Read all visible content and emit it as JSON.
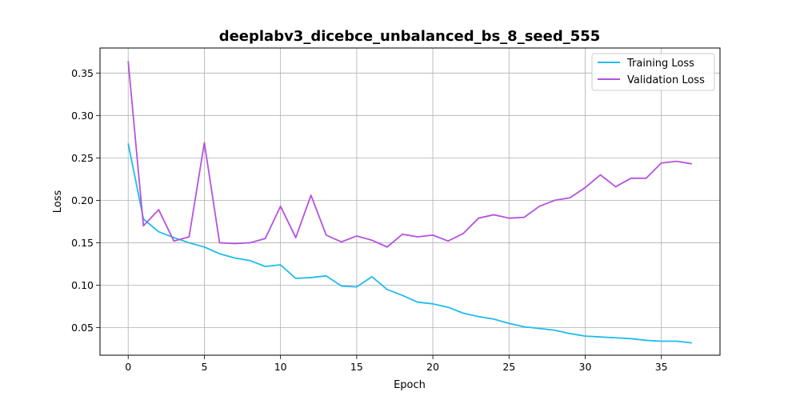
{
  "chart_data": {
    "type": "line",
    "title": "deeplabv3_dicebce_unbalanced_bs_8_seed_555",
    "xlabel": "Epoch",
    "ylabel": "Loss",
    "xlim": [
      -1.85,
      38.85
    ],
    "ylim": [
      0.0175,
      0.3795
    ],
    "xticks": [
      0,
      5,
      10,
      15,
      20,
      25,
      30,
      35
    ],
    "yticks": [
      0.05,
      0.1,
      0.15,
      0.2,
      0.25,
      0.3,
      0.35
    ],
    "ytick_labels": [
      "0.05",
      "0.10",
      "0.15",
      "0.20",
      "0.25",
      "0.30",
      "0.35"
    ],
    "grid": true,
    "legend_position": "top-right",
    "x": [
      0,
      1,
      2,
      3,
      4,
      5,
      6,
      7,
      8,
      9,
      10,
      11,
      12,
      13,
      14,
      15,
      16,
      17,
      18,
      19,
      20,
      21,
      22,
      23,
      24,
      25,
      26,
      27,
      28,
      29,
      30,
      31,
      32,
      33,
      34,
      35,
      36,
      37
    ],
    "series": [
      {
        "name": "Training Loss",
        "color": "#1fbcec",
        "values": [
          0.267,
          0.178,
          0.163,
          0.156,
          0.15,
          0.145,
          0.137,
          0.132,
          0.129,
          0.122,
          0.124,
          0.108,
          0.109,
          0.111,
          0.099,
          0.098,
          0.11,
          0.095,
          0.088,
          0.08,
          0.078,
          0.074,
          0.067,
          0.063,
          0.06,
          0.055,
          0.051,
          0.049,
          0.047,
          0.043,
          0.04,
          0.039,
          0.038,
          0.037,
          0.035,
          0.034,
          0.034,
          0.032
        ]
      },
      {
        "name": "Validation Loss",
        "color": "#b553e0",
        "values": [
          0.364,
          0.17,
          0.189,
          0.152,
          0.157,
          0.268,
          0.15,
          0.149,
          0.15,
          0.155,
          0.193,
          0.156,
          0.206,
          0.159,
          0.151,
          0.158,
          0.153,
          0.145,
          0.16,
          0.157,
          0.159,
          0.152,
          0.161,
          0.179,
          0.183,
          0.179,
          0.18,
          0.193,
          0.2,
          0.203,
          0.215,
          0.23,
          0.216,
          0.226,
          0.226,
          0.244,
          0.246,
          0.243
        ]
      }
    ]
  }
}
